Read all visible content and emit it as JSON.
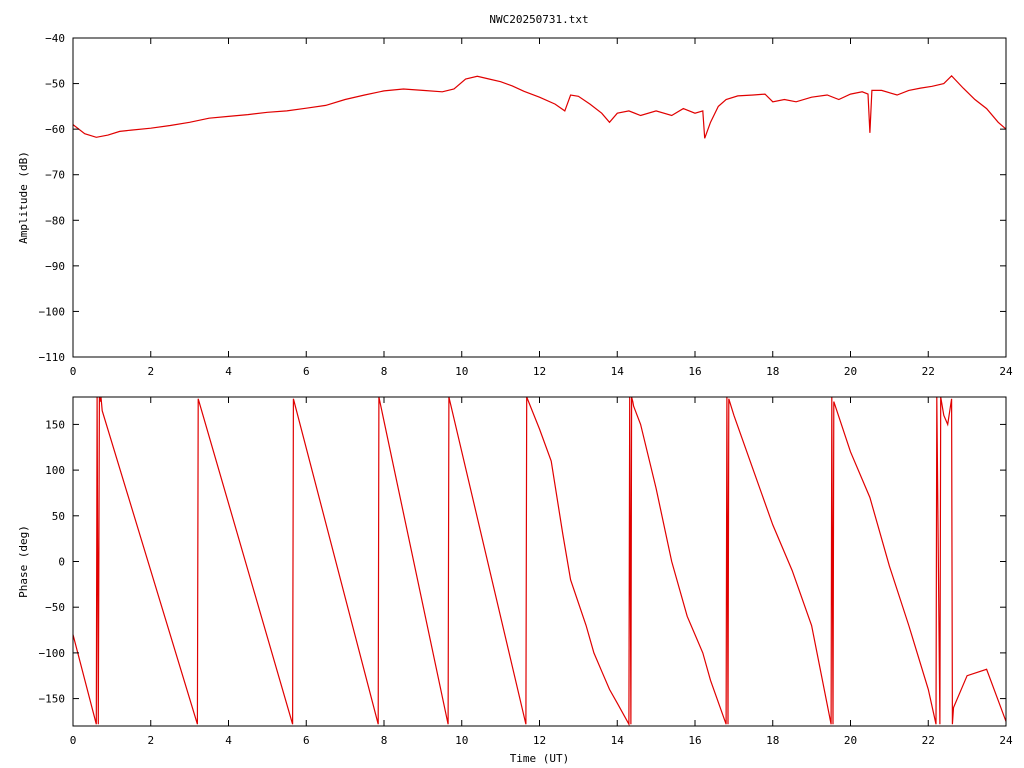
{
  "title": "NWC20250731.txt",
  "chart_data": [
    {
      "type": "line",
      "ylabel": "Amplitude (dB)",
      "xlabel": "",
      "xlim": [
        0,
        24
      ],
      "ylim": [
        -110,
        -40
      ],
      "xticks": [
        0,
        2,
        4,
        6,
        8,
        10,
        12,
        14,
        16,
        18,
        20,
        22,
        24
      ],
      "yticks": [
        -110,
        -100,
        -90,
        -80,
        -70,
        -60,
        -50,
        -40
      ],
      "grid": false,
      "series_color": "#e00000",
      "series": [
        {
          "x": [
            0,
            0.3,
            0.6,
            0.9,
            1.2,
            1.5,
            2,
            2.5,
            3,
            3.5,
            4,
            4.5,
            5,
            5.5,
            6,
            6.5,
            7,
            7.5,
            8,
            8.5,
            9,
            9.5,
            9.8,
            10.1,
            10.4,
            10.7,
            11,
            11.3,
            11.6,
            12,
            12.4,
            12.65,
            12.8,
            13,
            13.3,
            13.6,
            13.8,
            14,
            14.3,
            14.6,
            15,
            15.4,
            15.7,
            16,
            16.2,
            16.25,
            16.4,
            16.6,
            16.8,
            17.1,
            17.5,
            17.8,
            18,
            18.3,
            18.6,
            19,
            19.4,
            19.7,
            20,
            20.3,
            20.45,
            20.5,
            20.55,
            20.8,
            21.2,
            21.5,
            21.8,
            22.1,
            22.4,
            22.6,
            22.9,
            23.2,
            23.5,
            23.8,
            24
          ],
          "y": [
            -59,
            -61,
            -61.8,
            -61.3,
            -60.5,
            -60.2,
            -59.8,
            -59.2,
            -58.5,
            -57.6,
            -57.2,
            -56.8,
            -56.3,
            -56.0,
            -55.4,
            -54.8,
            -53.5,
            -52.5,
            -51.6,
            -51.2,
            -51.5,
            -51.8,
            -51.2,
            -49.0,
            -48.4,
            -49.0,
            -49.6,
            -50.5,
            -51.7,
            -53.0,
            -54.5,
            -56.0,
            -52.5,
            -52.8,
            -54.5,
            -56.5,
            -58.5,
            -56.5,
            -56.0,
            -57.0,
            -56.0,
            -57.0,
            -55.5,
            -56.5,
            -56.0,
            -62.0,
            -58.5,
            -55.0,
            -53.5,
            -52.7,
            -52.5,
            -52.3,
            -54.0,
            -53.5,
            -54.0,
            -53.0,
            -52.5,
            -53.5,
            -52.3,
            -51.8,
            -52.3,
            -60.8,
            -51.5,
            -51.5,
            -52.5,
            -51.5,
            -51.0,
            -50.6,
            -50.0,
            -48.3,
            -51.0,
            -53.5,
            -55.5,
            -58.5,
            -60.0
          ]
        }
      ]
    },
    {
      "type": "line",
      "ylabel": "Phase (deg)",
      "xlabel": "Time (UT)",
      "xlim": [
        0,
        24
      ],
      "ylim": [
        -180,
        180
      ],
      "xticks": [
        0,
        2,
        4,
        6,
        8,
        10,
        12,
        14,
        16,
        18,
        20,
        22,
        24
      ],
      "yticks": [
        -150,
        -100,
        -50,
        0,
        50,
        100,
        150
      ],
      "grid": false,
      "series_color": "#e00000",
      "series": [
        {
          "x": [
            0,
            0.6,
            0.62,
            0.65,
            0.68,
            0.7,
            0.72,
            0.75,
            3.2,
            3.22,
            5.65,
            5.67,
            7.85,
            7.87,
            9.65,
            9.67,
            11.65,
            11.67,
            12,
            12.3,
            12.6,
            12.8,
            13.2,
            13.4,
            13.6,
            13.8,
            14.0,
            14.3,
            14.32,
            14.35,
            14.37,
            14.4,
            14.42,
            14.6,
            15.0,
            15.4,
            15.8,
            16.2,
            16.4,
            16.8,
            16.82,
            16.85,
            16.87,
            17.0,
            17.5,
            18.0,
            18.5,
            19.0,
            19.5,
            19.52,
            19.55,
            19.57,
            20.0,
            20.5,
            21.0,
            21.5,
            22.0,
            22.2,
            22.22,
            22.3,
            22.32,
            22.4,
            22.5,
            22.6,
            22.62,
            22.65,
            23.0,
            23.5,
            24
          ],
          "y": [
            -80,
            -178,
            180,
            -178,
            180,
            175,
            180,
            165,
            -178,
            178,
            -178,
            178,
            -178,
            180,
            -178,
            180,
            -178,
            180,
            145,
            110,
            30,
            -20,
            -70,
            -100,
            -120,
            -140,
            -155,
            -178,
            180,
            -178,
            180,
            175,
            170,
            150,
            80,
            0,
            -60,
            -100,
            -130,
            -178,
            180,
            -178,
            178,
            160,
            100,
            40,
            -10,
            -70,
            -178,
            180,
            -178,
            175,
            120,
            70,
            -5,
            -70,
            -140,
            -178,
            180,
            -178,
            180,
            160,
            150,
            178,
            -178,
            -160,
            -125,
            -118,
            -175
          ]
        }
      ]
    }
  ]
}
